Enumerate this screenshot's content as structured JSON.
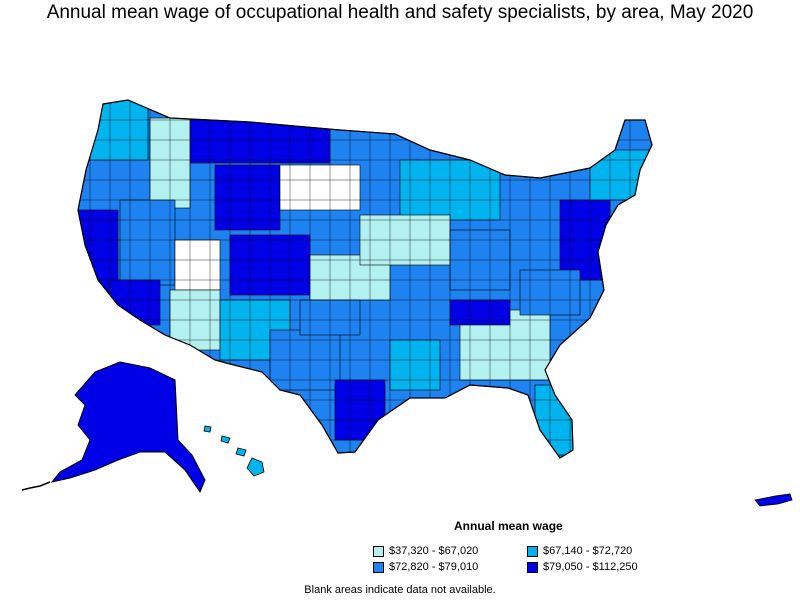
{
  "title": "Annual mean wage of occupational health and safety specialists, by area, May 2020",
  "legend": {
    "title": "Annual mean wage",
    "items": [
      {
        "label": "$37,320 - $67,020",
        "color": "#b3f0f0"
      },
      {
        "label": "$67,140 - $72,720",
        "color": "#00b4f0"
      },
      {
        "label": "$72,820 - $79,010",
        "color": "#1e82f0"
      },
      {
        "label": "$79,050 - $112,250",
        "color": "#0000e6"
      }
    ]
  },
  "footnote": "Blank areas indicate data not available.",
  "colors": {
    "border": "#000000",
    "no_data": "#ffffff"
  }
}
